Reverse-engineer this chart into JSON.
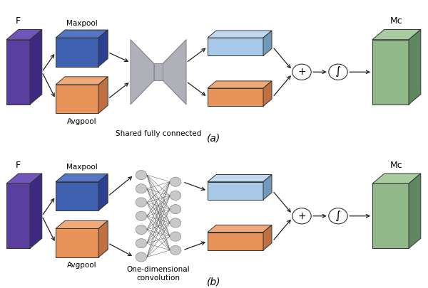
{
  "bg_color": "#ffffff",
  "purple_face": "#5B3FA0",
  "purple_top": "#7055BB",
  "purple_right": "#3D2A80",
  "blue_dark_face": "#4060B0",
  "blue_dark_top": "#5575C5",
  "blue_dark_right": "#2A4090",
  "orange_face": "#E8935A",
  "orange_top": "#F0AA7A",
  "orange_right": "#C07040",
  "blue_light_face": "#A8C8E8",
  "blue_light_top": "#C0D8F0",
  "blue_light_right": "#7099BB",
  "green_face": "#90B888",
  "green_top": "#A8CCA0",
  "green_right": "#608860",
  "gray_mlp": "#B0B0B8",
  "gray_mlp_dark": "#888898",
  "neuron_fill": "#C8C8C8",
  "neuron_edge": "#888888",
  "arrow_color": "#222222",
  "text_color": "#000000",
  "edge_dark": "#333333",
  "label_F": "F",
  "label_Mc": "Mc",
  "label_Maxpool": "Maxpool",
  "label_Avgpool": "Avgpool",
  "label_shared_fc": "Shared fully connected",
  "label_1d_conv": "One-dimensional\nconvolution",
  "title_a": "(a)",
  "title_b": "(b)"
}
